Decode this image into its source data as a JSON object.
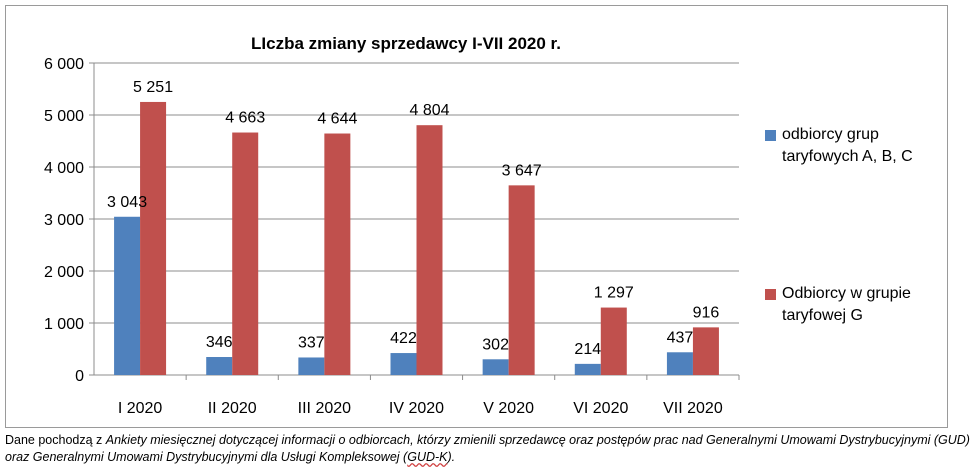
{
  "chart_data": {
    "type": "bar",
    "title": "LIczba zmiany sprzedawcy I-VII 2020 r.",
    "xlabel": "",
    "ylabel": "",
    "categories": [
      "I 2020",
      "II 2020",
      "III 2020",
      "IV 2020",
      "V 2020",
      "VI 2020",
      "VII 2020"
    ],
    "yticks": [
      "0",
      "1 000",
      "2 000",
      "3 000",
      "4 000",
      "5 000",
      "6 000"
    ],
    "ylim": [
      0,
      6000
    ],
    "legend_position": "right",
    "series": [
      {
        "name": "odbiorcy grup taryfowych A, B, C",
        "color": "#4F81BD",
        "values": [
          3043,
          346,
          337,
          422,
          302,
          214,
          437
        ],
        "labels": [
          "3 043",
          "346",
          "337",
          "422",
          "302",
          "214",
          "437"
        ]
      },
      {
        "name": "Odbiorcy w grupie taryfowej G",
        "color": "#C0504D",
        "values": [
          5251,
          4663,
          4644,
          4804,
          3647,
          1297,
          916
        ],
        "labels": [
          "5 251",
          "4 663",
          "4 644",
          "4 804",
          "3 647",
          "1 297",
          "916"
        ]
      }
    ],
    "grid": true
  },
  "footnote": {
    "prefix": "Dane pochodzą z ",
    "italic": "Ankiety miesięcznej dotyczącej informacji o odbiorcach, którzy zmienili sprzedawcę oraz postępów prac nad Generalnymi Umowami Dystrybucyjnymi (GUD) oraz Generalnymi Umowami Dystrybucyjnymi dla Usługi Kompleksowej (",
    "underlined": "GUD-K",
    "suffix": ")."
  }
}
